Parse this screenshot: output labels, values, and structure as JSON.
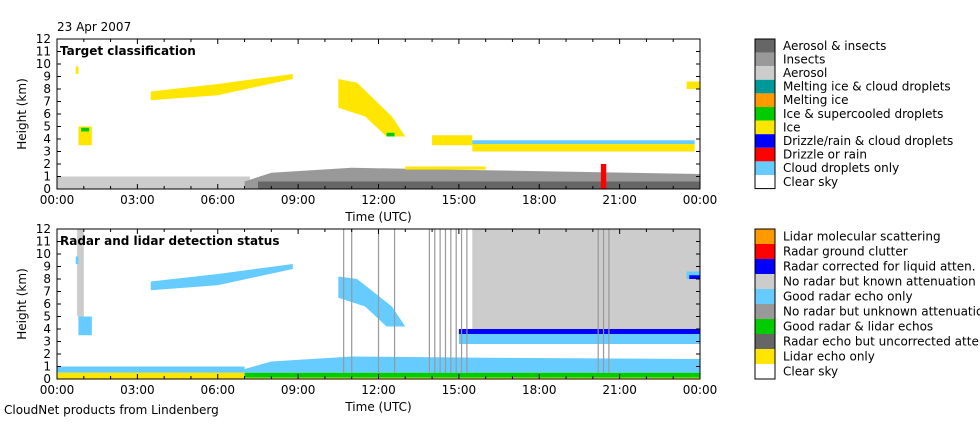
{
  "header": {
    "date": "23 Apr 2007"
  },
  "footer": {
    "credit": "CloudNet products from Lindenberg"
  },
  "chart_data": [
    {
      "type": "heatmap",
      "title": "Target classification",
      "xlabel": "Time (UTC)",
      "ylabel": "Height (km)",
      "xlim": [
        0,
        24
      ],
      "ylim": [
        0,
        12
      ],
      "xticks": [
        0,
        3,
        6,
        9,
        12,
        15,
        18,
        21,
        24
      ],
      "xtick_labels": [
        "00:00",
        "03:00",
        "06:00",
        "09:00",
        "12:00",
        "15:00",
        "18:00",
        "21:00",
        "00:00"
      ],
      "yticks": [
        0,
        1,
        2,
        3,
        4,
        5,
        6,
        7,
        8,
        9,
        10,
        11,
        12
      ],
      "yticklabels": [
        "0",
        "1",
        "2",
        "3",
        "4",
        "5",
        "6",
        "7",
        "8",
        "9",
        "10",
        "11",
        "12"
      ],
      "legend": [
        {
          "key": "aerosol_insects",
          "label": "Aerosol & insects",
          "color": "#666666"
        },
        {
          "key": "insects",
          "label": "Insects",
          "color": "#999999"
        },
        {
          "key": "aerosol",
          "label": "Aerosol",
          "color": "#cccccc"
        },
        {
          "key": "melting_cloud",
          "label": "Melting ice & cloud droplets",
          "color": "#009999"
        },
        {
          "key": "melting",
          "label": "Melting ice",
          "color": "#ff9900"
        },
        {
          "key": "ice_sc",
          "label": "Ice & supercooled droplets",
          "color": "#00cc00"
        },
        {
          "key": "ice",
          "label": "Ice",
          "color": "#ffe600"
        },
        {
          "key": "drizzle_cloud",
          "label": "Drizzle/rain & cloud droplets",
          "color": "#0000ff"
        },
        {
          "key": "drizzle",
          "label": "Drizzle or rain",
          "color": "#ff0000"
        },
        {
          "key": "cloud",
          "label": "Cloud droplets only",
          "color": "#66ccff"
        },
        {
          "key": "clear",
          "label": "Clear sky",
          "color": "#ffffff"
        }
      ],
      "regions": [
        {
          "c": "aerosol",
          "t": [
            0,
            7.2
          ],
          "h": [
            0,
            1.0
          ]
        },
        {
          "c": "insects",
          "poly": [
            [
              7,
              0
            ],
            [
              24,
              0
            ],
            [
              24,
              1.2
            ],
            [
              16,
              1.5
            ],
            [
              11,
              1.7
            ],
            [
              8,
              1.3
            ],
            [
              7,
              0.6
            ]
          ]
        },
        {
          "c": "aerosol_insects",
          "t": [
            7.5,
            24
          ],
          "h": [
            0,
            0.6
          ]
        },
        {
          "c": "ice",
          "t": [
            13,
            16
          ],
          "h": [
            1.55,
            1.8
          ]
        },
        {
          "c": "ice",
          "t": [
            0.7,
            0.8
          ],
          "h": [
            9.2,
            9.8
          ]
        },
        {
          "c": "ice",
          "t": [
            0.8,
            1.3
          ],
          "h": [
            3.5,
            5.0
          ]
        },
        {
          "c": "ice_sc",
          "t": [
            0.9,
            1.2
          ],
          "h": [
            4.6,
            4.9
          ]
        },
        {
          "c": "ice",
          "poly": [
            [
              3.5,
              7.1
            ],
            [
              6,
              7.5
            ],
            [
              8.8,
              8.8
            ],
            [
              8.8,
              9.2
            ],
            [
              6,
              8.4
            ],
            [
              3.5,
              7.8
            ]
          ]
        },
        {
          "c": "ice",
          "poly": [
            [
              10.5,
              8.8
            ],
            [
              11.2,
              8.5
            ],
            [
              12.5,
              5.8
            ],
            [
              13,
              4.2
            ],
            [
              12.3,
              4.2
            ],
            [
              11.5,
              5.8
            ],
            [
              10.5,
              6.5
            ]
          ]
        },
        {
          "c": "ice_sc",
          "t": [
            12.3,
            12.6
          ],
          "h": [
            4.2,
            4.5
          ]
        },
        {
          "c": "ice",
          "t": [
            14,
            15.5
          ],
          "h": [
            3.5,
            4.3
          ]
        },
        {
          "c": "ice",
          "t": [
            15.5,
            23.8
          ],
          "h": [
            3.0,
            3.6
          ]
        },
        {
          "c": "cloud",
          "t": [
            15.5,
            23.8
          ],
          "h": [
            3.6,
            3.9
          ]
        },
        {
          "c": "ice",
          "t": [
            23.5,
            24
          ],
          "h": [
            8.0,
            8.6
          ]
        },
        {
          "c": "drizzle",
          "t": [
            20.3,
            20.5
          ],
          "h": [
            0,
            2.0
          ]
        }
      ],
      "lines": []
    },
    {
      "type": "heatmap",
      "title": "Radar and lidar detection status",
      "xlabel": "Time (UTC)",
      "ylabel": "Height (km)",
      "xlim": [
        0,
        24
      ],
      "ylim": [
        0,
        12
      ],
      "xticks": [
        0,
        3,
        6,
        9,
        12,
        15,
        18,
        21,
        24
      ],
      "xtick_labels": [
        "00:00",
        "03:00",
        "06:00",
        "09:00",
        "12:00",
        "15:00",
        "18:00",
        "21:00",
        "00:00"
      ],
      "yticks": [
        0,
        1,
        2,
        3,
        4,
        5,
        6,
        7,
        8,
        9,
        10,
        11,
        12
      ],
      "yticklabels": [
        "0",
        "1",
        "2",
        "3",
        "4",
        "5",
        "6",
        "7",
        "8",
        "9",
        "10",
        "11",
        "12"
      ],
      "legend": [
        {
          "key": "lidar_mol",
          "label": "Lidar molecular scattering",
          "color": "#ff9900"
        },
        {
          "key": "clutter",
          "label": "Radar ground clutter",
          "color": "#ff0000"
        },
        {
          "key": "radar_corr",
          "label": "Radar corrected for liquid atten.",
          "color": "#0000ff"
        },
        {
          "key": "known_att",
          "label": "No radar but known attenuation",
          "color": "#cccccc"
        },
        {
          "key": "good_radar",
          "label": "Good radar echo only",
          "color": "#66ccff"
        },
        {
          "key": "unknown_att",
          "label": "No radar but unknown attenuation",
          "color": "#999999"
        },
        {
          "key": "both",
          "label": "Good radar & lidar echos",
          "color": "#00cc00"
        },
        {
          "key": "uncorrected",
          "label": "Radar echo but uncorrected atten.",
          "color": "#666666"
        },
        {
          "key": "lidar_only",
          "label": "Lidar echo only",
          "color": "#ffe600"
        },
        {
          "key": "clear",
          "label": "Clear sky",
          "color": "#ffffff"
        }
      ],
      "regions": [
        {
          "c": "known_att",
          "t": [
            0.75,
            1.0
          ],
          "h": [
            5,
            12
          ]
        },
        {
          "c": "known_att",
          "t": [
            15.5,
            24
          ],
          "h": [
            4,
            12
          ]
        },
        {
          "c": "good_radar",
          "t": [
            0.7,
            0.8
          ],
          "h": [
            9.2,
            9.8
          ]
        },
        {
          "c": "good_radar",
          "t": [
            0.8,
            1.3
          ],
          "h": [
            3.5,
            5.0
          ]
        },
        {
          "c": "good_radar",
          "poly": [
            [
              3.5,
              7.1
            ],
            [
              6,
              7.5
            ],
            [
              8.8,
              8.8
            ],
            [
              8.8,
              9.2
            ],
            [
              6,
              8.4
            ],
            [
              3.5,
              7.8
            ]
          ]
        },
        {
          "c": "good_radar",
          "poly": [
            [
              10.5,
              8.2
            ],
            [
              11.2,
              8.0
            ],
            [
              12.5,
              5.8
            ],
            [
              13,
              4.2
            ],
            [
              12.3,
              4.2
            ],
            [
              11.5,
              5.8
            ],
            [
              10.5,
              6.5
            ]
          ]
        },
        {
          "c": "good_radar",
          "t": [
            15,
            24
          ],
          "h": [
            2.8,
            3.6
          ]
        },
        {
          "c": "radar_corr",
          "t": [
            15,
            24
          ],
          "h": [
            3.6,
            4.0
          ]
        },
        {
          "c": "good_radar",
          "t": [
            23.5,
            24
          ],
          "h": [
            8.0,
            8.6
          ]
        },
        {
          "c": "radar_corr",
          "t": [
            23.6,
            24
          ],
          "h": [
            8.0,
            8.3
          ]
        },
        {
          "c": "good_radar",
          "t": [
            0,
            7
          ],
          "h": [
            0.5,
            1.0
          ]
        },
        {
          "c": "good_radar",
          "poly": [
            [
              7,
              0.5
            ],
            [
              24,
              0.5
            ],
            [
              24,
              1.6
            ],
            [
              16,
              1.7
            ],
            [
              11,
              1.8
            ],
            [
              8,
              1.4
            ],
            [
              7,
              0.8
            ]
          ]
        },
        {
          "c": "both",
          "t": [
            7,
            24
          ],
          "h": [
            0.1,
            0.5
          ]
        },
        {
          "c": "lidar_only",
          "t": [
            0,
            7
          ],
          "h": [
            0,
            0.5
          ]
        },
        {
          "c": "lidar_only",
          "t": [
            0,
            24
          ],
          "h": [
            0,
            0.1
          ]
        }
      ],
      "lines": [
        {
          "c": "unknown_att",
          "t": [
            10.7,
            11.0,
            12.0,
            12.6,
            13.9,
            14.1,
            14.3,
            14.5,
            14.7,
            14.9,
            15.1,
            15.3,
            20.2,
            20.4,
            20.6
          ],
          "h": [
            0.5,
            12
          ]
        }
      ]
    }
  ]
}
